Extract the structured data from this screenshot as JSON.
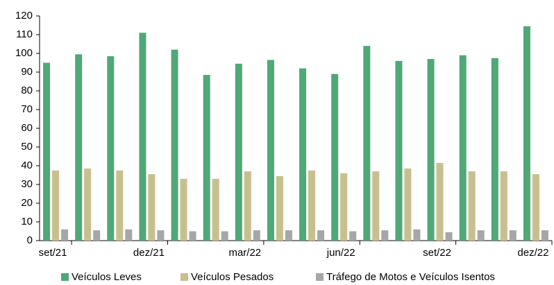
{
  "chart_data": {
    "type": "bar",
    "categories": [
      "set/21",
      null,
      null,
      "dez/21",
      null,
      null,
      "mar/22",
      null,
      null,
      "jun/22",
      null,
      null,
      "set/22",
      null,
      null,
      "dez/22"
    ],
    "series": [
      {
        "name": "Veículos Leves",
        "color": "#4fa876",
        "values": [
          95,
          99.5,
          98.5,
          111,
          102,
          88.5,
          94.5,
          96.5,
          92,
          89,
          104,
          96,
          97,
          99,
          97.5,
          114.5
        ]
      },
      {
        "name": "Veículos Pesados",
        "color": "#c9bf8e",
        "values": [
          37.5,
          38.5,
          37.5,
          35.5,
          33,
          33,
          37,
          34.5,
          37.5,
          36,
          37,
          38.5,
          41.5,
          37,
          37,
          35.5
        ]
      },
      {
        "name": "Tráfego de Motos e Veículos Isentos",
        "color": "#a6a6a6",
        "values": [
          6,
          5.5,
          6,
          5.5,
          5,
          5,
          5.5,
          5.5,
          5.5,
          5,
          5.5,
          6,
          4.5,
          5.5,
          5.5,
          5.5
        ]
      }
    ],
    "ylim": [
      0,
      120
    ],
    "yticks": [
      0,
      10,
      20,
      30,
      40,
      50,
      60,
      70,
      80,
      90,
      100,
      110,
      120
    ],
    "grid": false,
    "legend": "bottom"
  }
}
